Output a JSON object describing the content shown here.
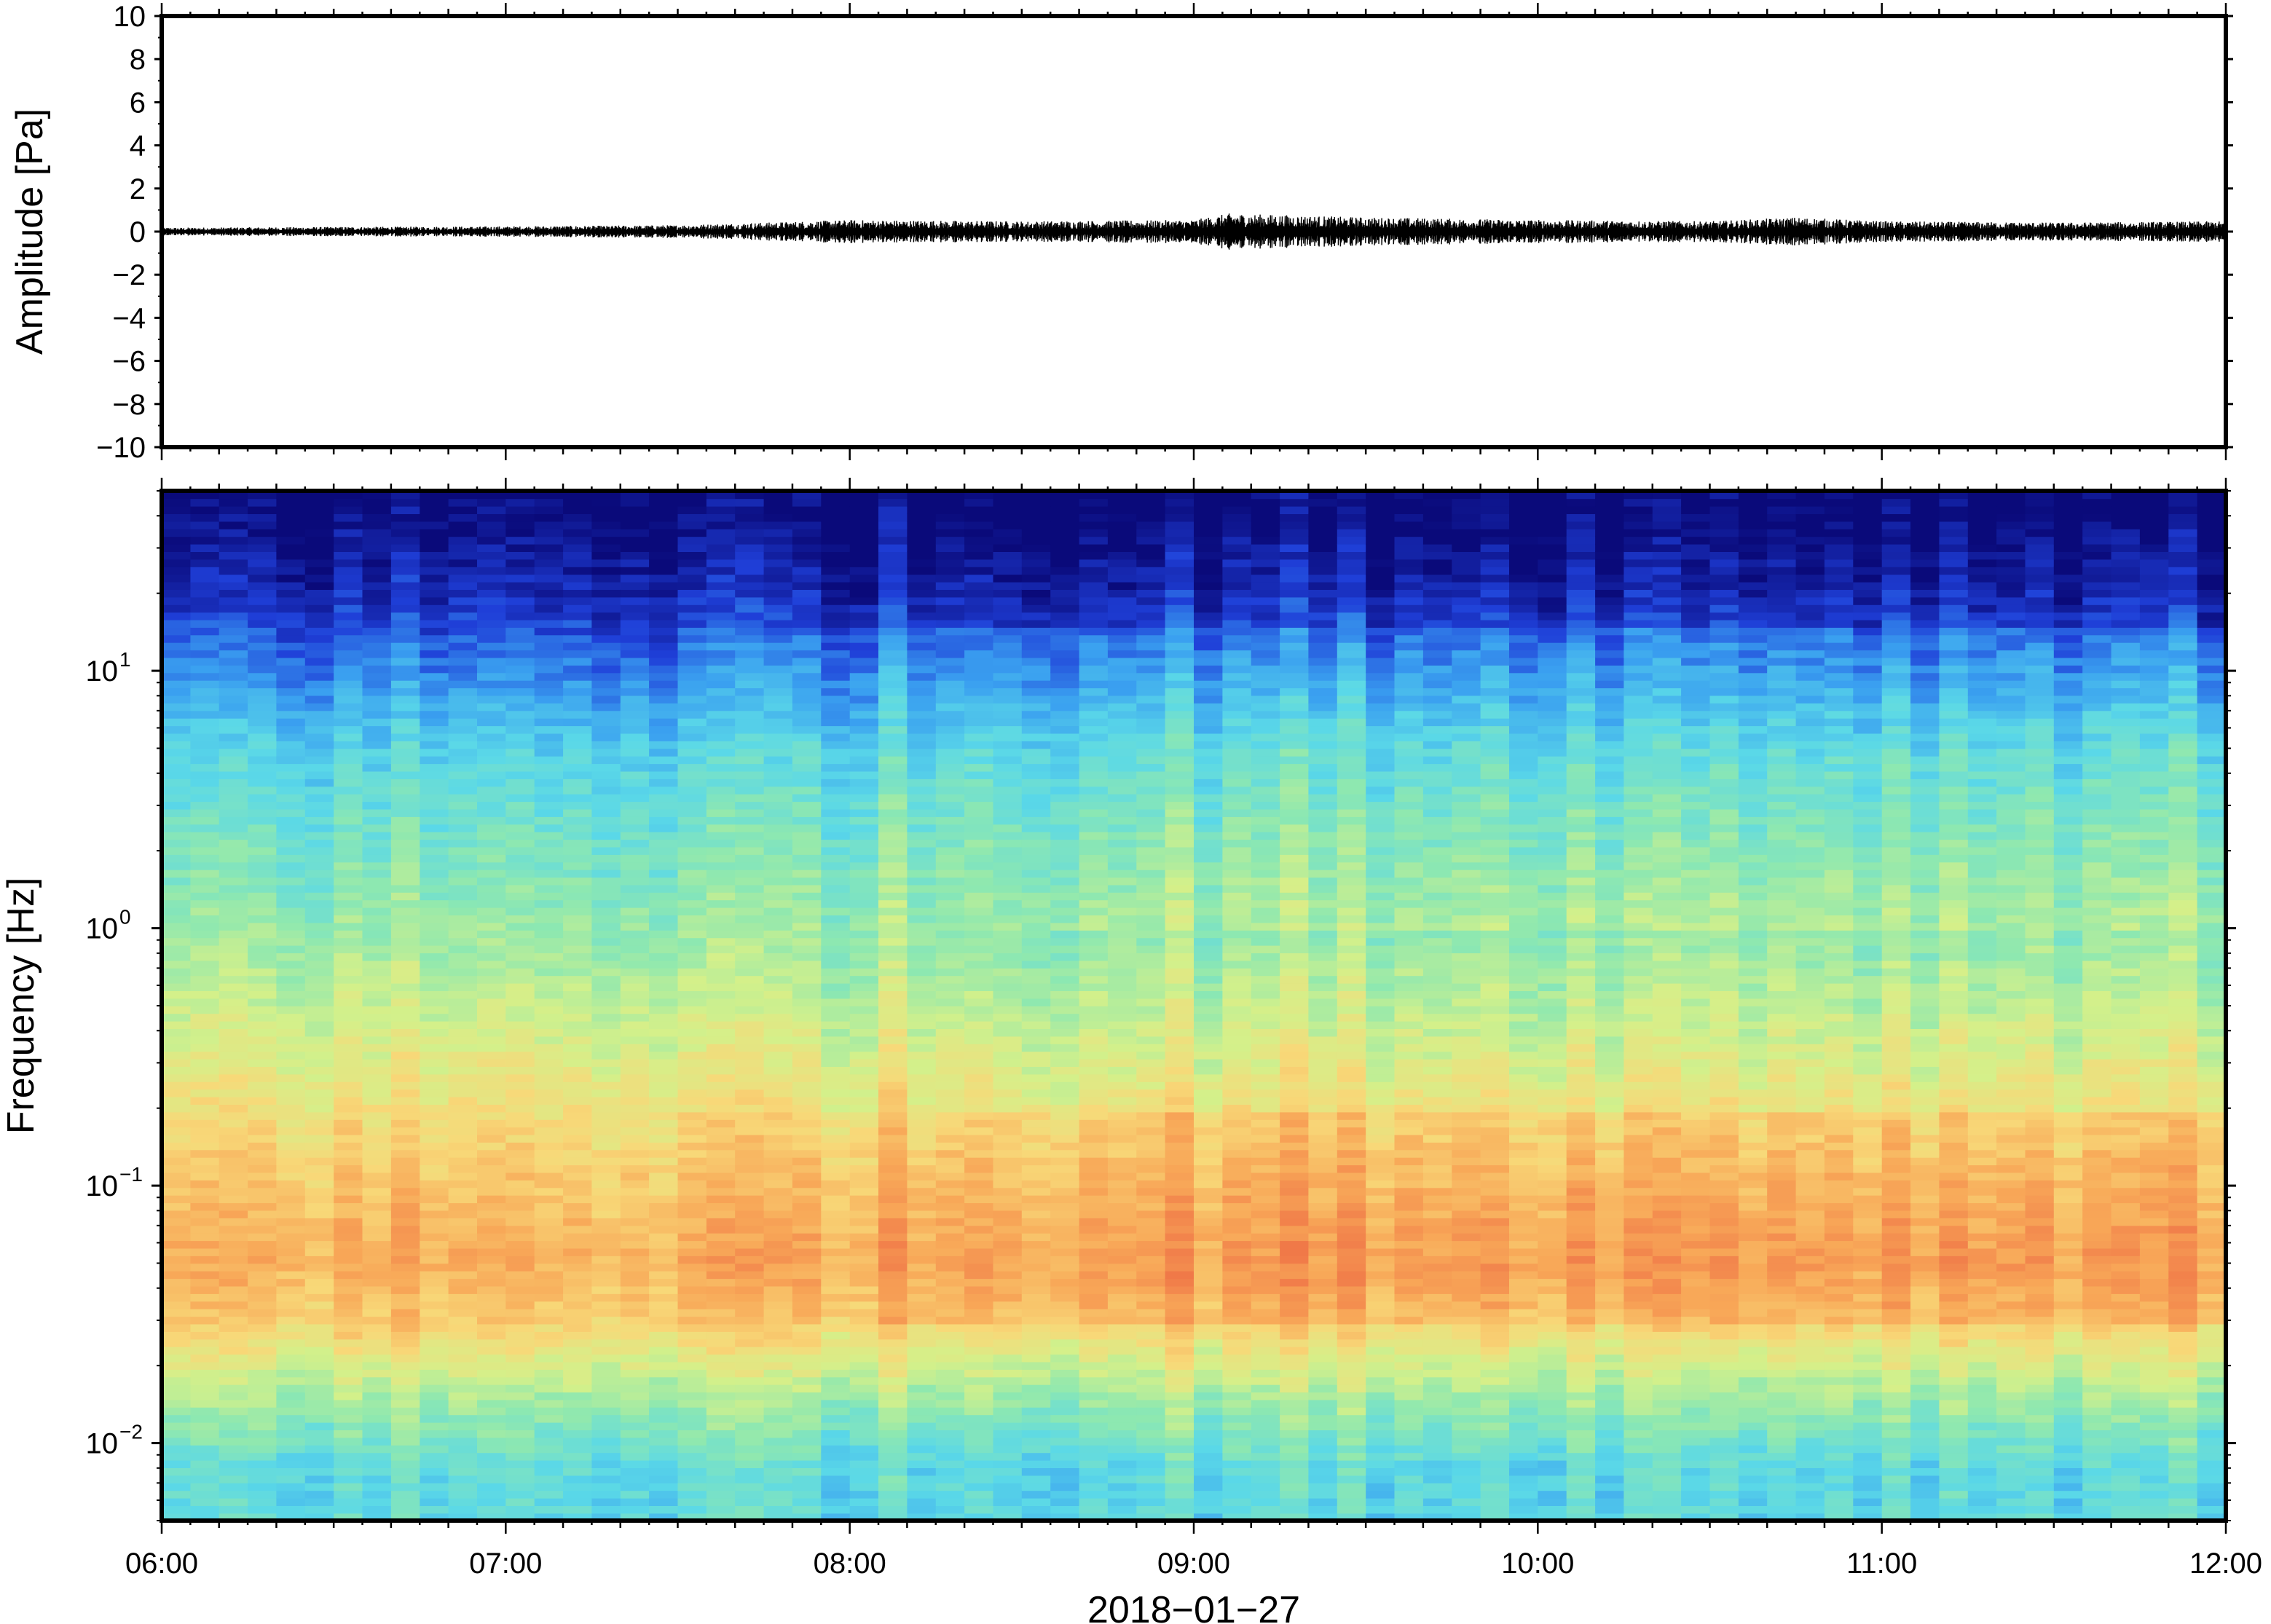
{
  "chart_data": [
    {
      "type": "line",
      "panel": "waveform",
      "ylabel": "Amplitude [Pa]",
      "ylim": [
        -10,
        10
      ],
      "yticks": [
        10,
        8,
        6,
        4,
        2,
        0,
        -2,
        -4,
        -6,
        -8,
        -10
      ],
      "ytick_labels": [
        "10",
        "8",
        "6",
        "4",
        "2",
        "0",
        "−2",
        "−4",
        "−6",
        "−8",
        "−10"
      ],
      "x_start": "06:00",
      "x_end": "12:00",
      "series": [
        {
          "color": "#000000",
          "envelope_x_hours": [
            6.0,
            6.5,
            7.0,
            7.5,
            7.75,
            8.0,
            8.5,
            9.0,
            9.1,
            9.5,
            10.0,
            10.5,
            10.75,
            11.0,
            11.5,
            12.0
          ],
          "envelope_amplitude": [
            0.15,
            0.18,
            0.2,
            0.25,
            0.35,
            0.45,
            0.4,
            0.45,
            0.7,
            0.55,
            0.45,
            0.4,
            0.55,
            0.4,
            0.35,
            0.4
          ]
        }
      ]
    },
    {
      "type": "heatmap",
      "panel": "spectrogram",
      "ylabel": "Frequency [Hz]",
      "xlabel": "2018−01−27",
      "yscale": "log",
      "ylim": [
        0.005,
        50
      ],
      "yticks": [
        {
          "value": 10,
          "base": "10",
          "exp": "1"
        },
        {
          "value": 1,
          "base": "10",
          "exp": "0"
        },
        {
          "value": 0.1,
          "base": "10",
          "exp": "−1"
        },
        {
          "value": 0.01,
          "base": "10",
          "exp": "−2"
        }
      ],
      "xticks": [
        "06:00",
        "07:00",
        "08:00",
        "09:00",
        "10:00",
        "11:00",
        "12:00"
      ],
      "x_range_hours": [
        6,
        12
      ],
      "colormap": [
        "#0a0a7a",
        "#1f3fd8",
        "#3aa0f0",
        "#5ad8e8",
        "#8ee8b0",
        "#d4f08a",
        "#f8d878",
        "#f8a858",
        "#f07848"
      ],
      "band_levels": [
        {
          "freq": 40,
          "level": 0.0
        },
        {
          "freq": 20,
          "level": 0.08
        },
        {
          "freq": 10,
          "level": 0.22
        },
        {
          "freq": 5,
          "level": 0.36
        },
        {
          "freq": 2,
          "level": 0.46
        },
        {
          "freq": 1,
          "level": 0.52
        },
        {
          "freq": 0.5,
          "level": 0.6
        },
        {
          "freq": 0.2,
          "level": 0.72
        },
        {
          "freq": 0.1,
          "level": 0.8
        },
        {
          "freq": 0.05,
          "level": 0.86
        },
        {
          "freq": 0.03,
          "level": 0.78
        },
        {
          "freq": 0.015,
          "level": 0.55
        },
        {
          "freq": 0.008,
          "level": 0.4
        }
      ]
    }
  ]
}
